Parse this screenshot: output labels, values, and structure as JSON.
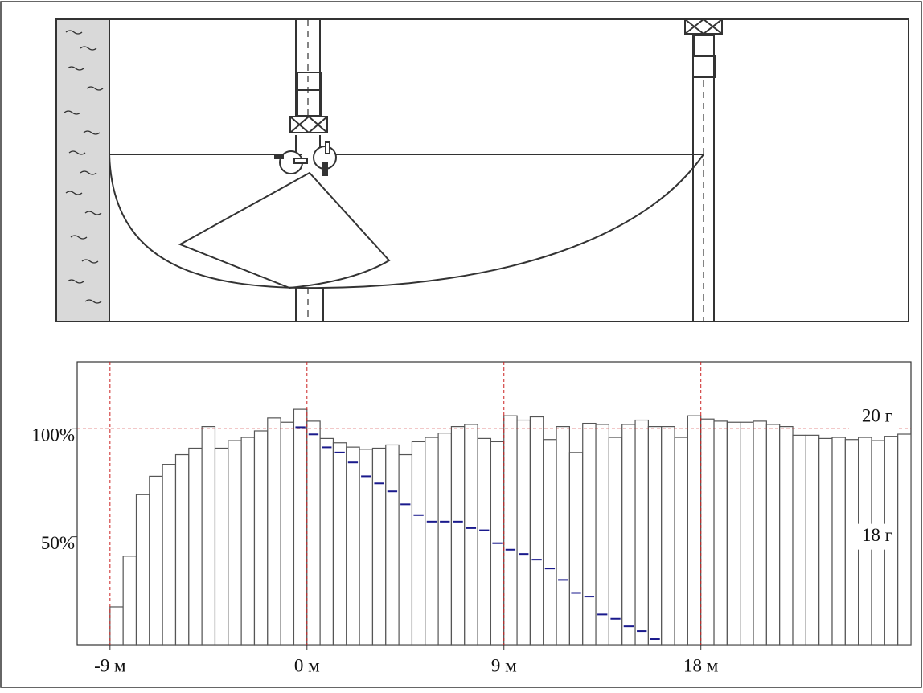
{
  "chart_data": {
    "type": "histogram",
    "bins": [
      -9,
      -8.4,
      -7.8,
      -7.2,
      -6.6,
      -6,
      -5.4,
      -4.8,
      -4.2,
      -3.6,
      -3,
      -2.4,
      -1.8,
      -1.2,
      -0.6,
      0,
      0.6,
      1.2,
      1.8,
      2.4,
      3,
      3.6,
      4.2,
      4.8,
      5.4,
      6,
      6.6,
      7.2,
      7.8,
      8.4,
      9,
      9.6,
      10.2,
      10.8,
      11.4,
      12,
      12.6,
      13.2,
      13.8,
      14.4,
      15,
      15.6,
      16.2,
      16.8,
      17.4,
      18,
      18.6,
      19.2,
      19.8,
      20.4,
      21,
      21.6,
      22.2,
      22.8,
      23.4,
      24,
      24.6,
      25.2,
      25.8,
      26.4,
      27,
      27.6
    ],
    "series": [
      {
        "name": "20 г",
        "color": "#555555",
        "values": [
          17.5,
          41,
          69.5,
          78,
          83.5,
          88,
          91,
          101,
          91,
          94.5,
          96,
          99,
          105,
          103,
          109,
          103.5,
          95.5,
          93.5,
          91.5,
          90.5,
          91,
          92.5,
          88,
          94,
          96,
          98,
          101,
          102,
          95.5,
          94,
          106,
          104,
          105.5,
          95,
          101,
          89,
          102.5,
          102,
          96,
          102,
          104,
          101,
          101,
          96,
          106,
          104.5,
          103.5,
          103,
          103,
          103.5,
          102,
          101,
          97,
          97,
          95.5,
          96,
          95,
          96,
          94.5,
          96.5,
          97.5
        ]
      },
      {
        "name": "18 г",
        "color": "#1a1a8c",
        "values": [
          null,
          null,
          null,
          null,
          null,
          null,
          null,
          null,
          null,
          null,
          null,
          null,
          null,
          null,
          100.7,
          97.4,
          91.4,
          89,
          84.4,
          78,
          74.7,
          71,
          65,
          60,
          57,
          57,
          57,
          54,
          53,
          47,
          44,
          42,
          39.4,
          35.3,
          30,
          24,
          22.3,
          14,
          12,
          8.5,
          6.3,
          2.6,
          null,
          null,
          null,
          null,
          null,
          null,
          null,
          null,
          null,
          null,
          null,
          null,
          null,
          null,
          null,
          null,
          null,
          null,
          null
        ]
      }
    ],
    "xlim": [
      -10.5,
      27.6
    ],
    "xticks": [
      {
        "value": -9,
        "label": "-9 м"
      },
      {
        "value": 0,
        "label": "0 м"
      },
      {
        "value": 9,
        "label": "9 м"
      },
      {
        "value": 18,
        "label": "18 м"
      }
    ],
    "ylim": [
      0,
      131
    ],
    "yticks": [
      {
        "value": 50,
        "label": "50%"
      },
      {
        "value": 100,
        "label": "100%"
      }
    ],
    "x_grid": true,
    "grid_color": "#cc2222",
    "reference_line_y": 100
  }
}
